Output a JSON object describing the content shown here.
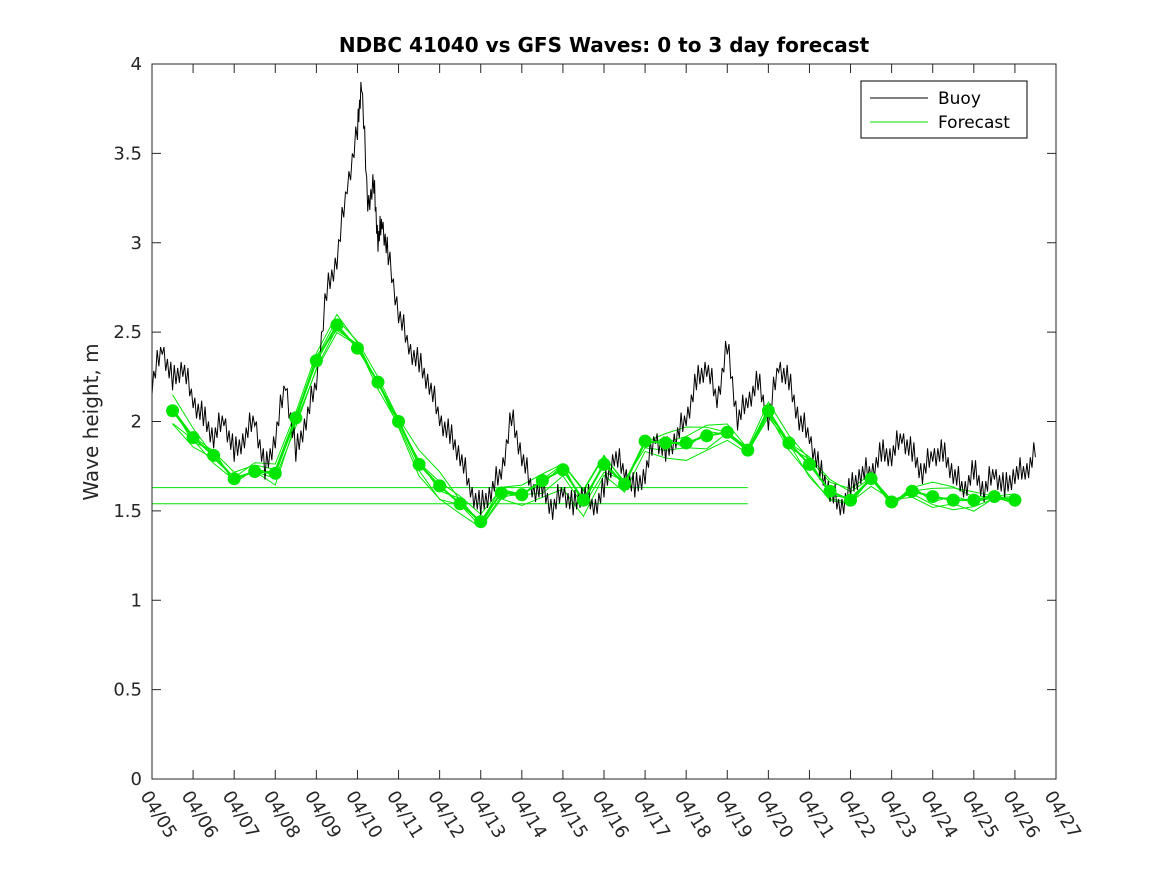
{
  "chart_data": {
    "type": "line",
    "title": "NDBC 41040 vs GFS Waves: 0 to 3 day forecast",
    "xlabel": "",
    "ylabel": "Wave height, m",
    "x_tick_labels": [
      "04/05",
      "04/06",
      "04/07",
      "04/08",
      "04/09",
      "04/10",
      "04/11",
      "04/12",
      "04/13",
      "04/14",
      "04/15",
      "04/16",
      "04/17",
      "04/18",
      "04/19",
      "04/20",
      "04/21",
      "04/22",
      "04/23",
      "04/24",
      "04/25",
      "04/26",
      "04/27"
    ],
    "y_tick_labels": [
      "0",
      "0.5",
      "1",
      "1.5",
      "2",
      "2.5",
      "3",
      "3.5",
      "4"
    ],
    "xlim": [
      0,
      22
    ],
    "ylim": [
      0,
      4
    ],
    "grid": false,
    "legend_position": "top-right",
    "colors": {
      "buoy": "#000000",
      "forecast": "#00e600"
    },
    "series": [
      {
        "name": "Buoy",
        "x": [
          0.0,
          0.25,
          0.5,
          0.75,
          1.0,
          1.25,
          1.5,
          1.75,
          2.0,
          2.25,
          2.5,
          2.75,
          3.0,
          3.25,
          3.5,
          3.75,
          4.0,
          4.25,
          4.5,
          4.75,
          5.0,
          5.1,
          5.25,
          5.4,
          5.5,
          5.6,
          5.75,
          6.0,
          6.25,
          6.5,
          6.75,
          7.0,
          7.25,
          7.5,
          7.75,
          8.0,
          8.25,
          8.5,
          8.75,
          9.0,
          9.25,
          9.5,
          9.75,
          10.0,
          10.25,
          10.5,
          10.75,
          11.0,
          11.25,
          11.5,
          11.75,
          12.0,
          12.25,
          12.5,
          12.75,
          13.0,
          13.25,
          13.5,
          13.75,
          14.0,
          14.25,
          14.5,
          14.75,
          15.0,
          15.25,
          15.5,
          15.75,
          16.0,
          16.25,
          16.5,
          16.75,
          17.0,
          17.25,
          17.5,
          17.75,
          18.0,
          18.25,
          18.5,
          18.75,
          19.0,
          19.25,
          19.5,
          19.75,
          20.0,
          20.25,
          20.5,
          20.75,
          21.0,
          21.25,
          21.5
        ],
        "values": [
          2.2,
          2.4,
          2.2,
          2.3,
          2.1,
          2.0,
          1.9,
          2.0,
          1.8,
          1.9,
          2.0,
          1.7,
          1.9,
          2.2,
          1.8,
          2.0,
          2.2,
          2.7,
          2.9,
          3.3,
          3.6,
          3.9,
          3.2,
          3.3,
          3.0,
          3.1,
          2.9,
          2.6,
          2.4,
          2.3,
          2.2,
          2.0,
          1.9,
          1.8,
          1.6,
          1.5,
          1.6,
          1.7,
          2.0,
          1.8,
          1.6,
          1.6,
          1.5,
          1.6,
          1.5,
          1.6,
          1.5,
          1.6,
          1.8,
          1.7,
          1.6,
          1.7,
          1.9,
          1.8,
          1.9,
          2.0,
          2.2,
          2.3,
          2.1,
          2.4,
          2.0,
          2.1,
          2.2,
          2.0,
          2.3,
          2.2,
          2.0,
          1.9,
          1.7,
          1.6,
          1.5,
          1.6,
          1.7,
          1.7,
          1.8,
          1.8,
          1.9,
          1.8,
          1.7,
          1.8,
          1.8,
          1.7,
          1.6,
          1.7,
          1.6,
          1.7,
          1.6,
          1.7,
          1.7,
          1.8
        ]
      },
      {
        "name": "Forecast",
        "markers_x": [
          0.5,
          1.0,
          1.5,
          2.0,
          2.5,
          3.0,
          3.5,
          4.0,
          4.5,
          5.0,
          5.5,
          6.0,
          6.5,
          7.0,
          7.5,
          8.0,
          8.5,
          9.0,
          9.5,
          10.0,
          10.5,
          11.0,
          11.5,
          12.0,
          12.5,
          13.0,
          13.5,
          14.0,
          14.5,
          15.0,
          15.5,
          16.0,
          16.5,
          17.0,
          17.5,
          18.0,
          18.5,
          19.0,
          19.5,
          20.0,
          20.5,
          21.0
        ],
        "markers_values": [
          2.06,
          1.91,
          1.81,
          1.68,
          1.72,
          1.71,
          2.02,
          2.34,
          2.54,
          2.41,
          2.22,
          2.0,
          1.76,
          1.64,
          1.54,
          1.44,
          1.6,
          1.59,
          1.67,
          1.73,
          1.56,
          1.76,
          1.65,
          1.89,
          1.88,
          1.88,
          1.92,
          1.94,
          1.84,
          2.06,
          1.88,
          1.76,
          1.61,
          1.56,
          1.68,
          1.55,
          1.61,
          1.58,
          1.56,
          1.56,
          1.58,
          1.56
        ],
        "variant_offsets": [
          0.0,
          -0.05,
          0.04,
          -0.08,
          0.06
        ],
        "horizontal_levels": [
          1.63,
          1.54
        ]
      }
    ]
  }
}
